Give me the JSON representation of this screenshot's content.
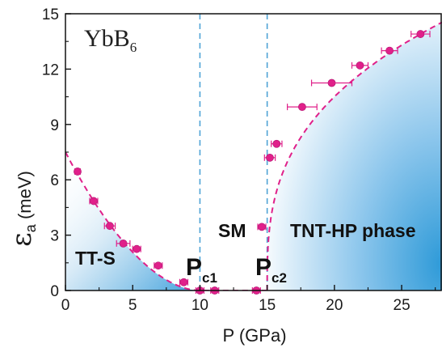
{
  "chart_data": {
    "type": "scatter",
    "title": "YbB6",
    "xlabel": "P (GPa)",
    "ylabel": "εa (meV)",
    "xlim": [
      0,
      28
    ],
    "ylim": [
      0,
      15
    ],
    "xticks": [
      "0",
      "5",
      "10",
      "15",
      "20",
      "25"
    ],
    "yticks": [
      "0",
      "3",
      "6",
      "9",
      "12",
      "15"
    ],
    "series": [
      {
        "marker": "circle",
        "color": "#e0208a",
        "points": [
          {
            "x": 0.9,
            "y": 6.45,
            "xerr": 0.2
          },
          {
            "x": 2.1,
            "y": 4.85,
            "xerr": 0.3
          },
          {
            "x": 3.3,
            "y": 3.5,
            "xerr": 0.4
          },
          {
            "x": 4.3,
            "y": 2.55,
            "xerr": 0.5
          },
          {
            "x": 5.3,
            "y": 2.25,
            "xerr": 0.3
          },
          {
            "x": 6.9,
            "y": 1.35,
            "xerr": 0.3
          },
          {
            "x": 8.8,
            "y": 0.45,
            "xerr": 0.3
          },
          {
            "x": 10.0,
            "y": 0.0,
            "xerr": 0.3
          },
          {
            "x": 11.1,
            "y": 0.0,
            "xerr": 0.3
          },
          {
            "x": 14.2,
            "y": 0.0,
            "xerr": 0.3
          },
          {
            "x": 14.6,
            "y": 3.45,
            "xerr": 0.3
          },
          {
            "x": 15.2,
            "y": 7.2,
            "xerr": 0.4
          },
          {
            "x": 15.7,
            "y": 7.95,
            "xerr": 0.4
          },
          {
            "x": 17.6,
            "y": 9.95,
            "xerr": 1.1
          },
          {
            "x": 19.8,
            "y": 11.25,
            "xerr": 1.5
          },
          {
            "x": 21.9,
            "y": 12.2,
            "xerr": 0.6
          },
          {
            "x": 24.1,
            "y": 13.0,
            "xerr": 0.6
          },
          {
            "x": 26.4,
            "y": 13.9,
            "xerr": 0.7
          }
        ]
      }
    ],
    "fit_curves": {
      "style": "dashed",
      "color": "#e0208a",
      "left_branch_x0": 0,
      "left_branch_x1": 10,
      "left_branch_y0": 7.5,
      "right_branch_x0": 15,
      "right_branch_x1": 28
    },
    "vlines": [
      {
        "x": 10.0,
        "color": "#4fa3d6"
      },
      {
        "x": 15.0,
        "color": "#4fa3d6"
      }
    ],
    "annotations": {
      "material": "YbB",
      "material_sub": "6",
      "region_left": "TT-S",
      "region_mid": "SM",
      "region_right": "TNT-HP phase",
      "pc1_main": "P",
      "pc1_sub": "c1",
      "pc2_main": "P",
      "pc2_sub": "c2"
    },
    "ylabel_parts": {
      "main": "ε",
      "sub": "a",
      "unit": " (meV)"
    },
    "grid": false,
    "legend": "none"
  }
}
